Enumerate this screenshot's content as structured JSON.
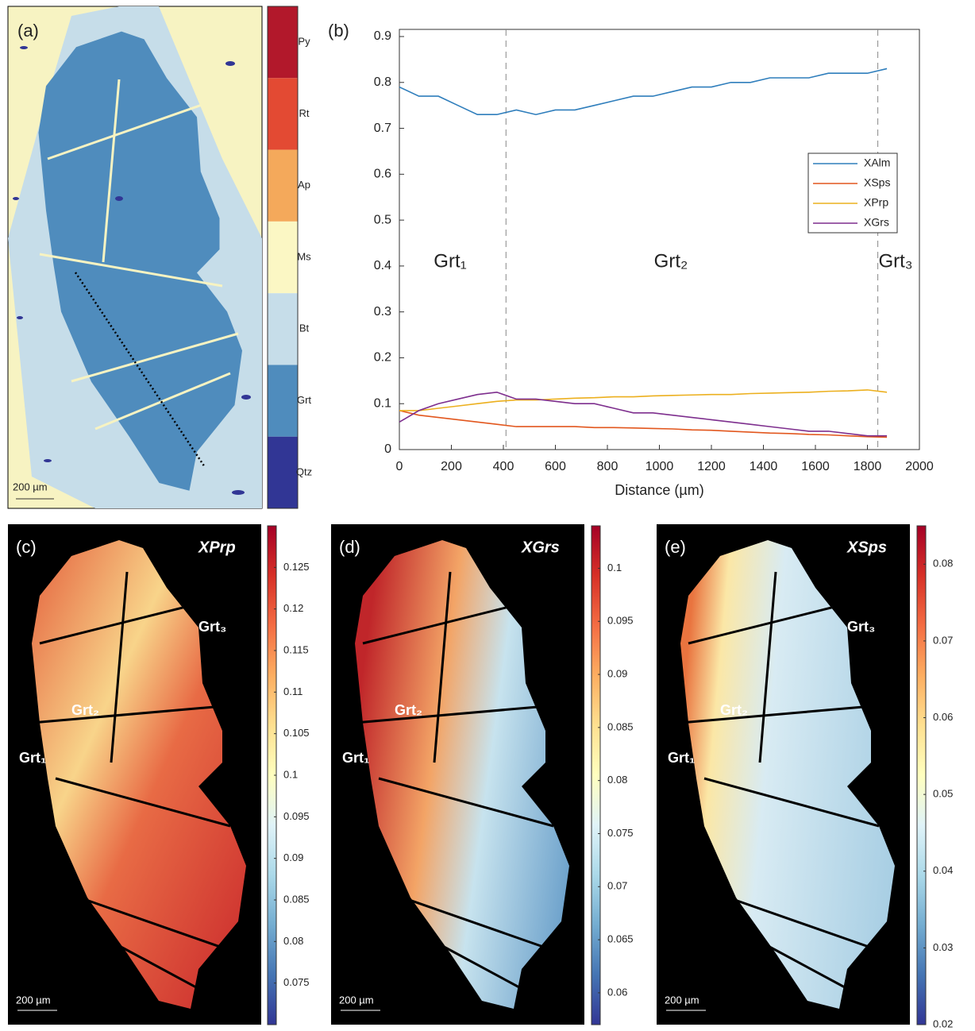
{
  "phase_map": {
    "label": "(a)",
    "scale_bar": "200 µm",
    "legend": [
      {
        "name": "Py",
        "color": "#b2182b"
      },
      {
        "name": "Rt",
        "color": "#e34a33"
      },
      {
        "name": "Ap",
        "color": "#f4a95b"
      },
      {
        "name": "Ms",
        "color": "#fbf7c4"
      },
      {
        "name": "Bt",
        "color": "#c6dde9"
      },
      {
        "name": "Grt",
        "color": "#4f8cbd"
      },
      {
        "name": "Qtz",
        "color": "#313695"
      }
    ]
  },
  "chart_data": {
    "type": "line",
    "label": "(b)",
    "xlabel": "Distance (µm)",
    "xlim": [
      0,
      2000
    ],
    "xticks": [
      0,
      200,
      400,
      600,
      800,
      1000,
      1200,
      1400,
      1600,
      1800,
      2000
    ],
    "ylim": [
      0,
      0.9
    ],
    "yticks": [
      0,
      0.1,
      0.2,
      0.3,
      0.4,
      0.5,
      0.6,
      0.7,
      0.8,
      0.9
    ],
    "boundaries": [
      410,
      1840
    ],
    "annotations": [
      "Grt₁",
      "Grt₂",
      "Grt₃"
    ],
    "x": [
      0,
      75,
      150,
      225,
      300,
      375,
      450,
      525,
      600,
      675,
      750,
      825,
      900,
      975,
      1050,
      1125,
      1200,
      1275,
      1350,
      1425,
      1500,
      1575,
      1650,
      1725,
      1800,
      1875
    ],
    "series": [
      {
        "name": "XAlm",
        "color": "#2f7ebc",
        "values": [
          0.79,
          0.77,
          0.77,
          0.75,
          0.73,
          0.73,
          0.74,
          0.73,
          0.74,
          0.74,
          0.75,
          0.76,
          0.77,
          0.77,
          0.78,
          0.79,
          0.79,
          0.8,
          0.8,
          0.81,
          0.81,
          0.81,
          0.82,
          0.82,
          0.82,
          0.83
        ]
      },
      {
        "name": "XSps",
        "color": "#e2571e",
        "values": [
          0.085,
          0.075,
          0.07,
          0.065,
          0.06,
          0.055,
          0.05,
          0.05,
          0.05,
          0.05,
          0.048,
          0.048,
          0.047,
          0.046,
          0.045,
          0.043,
          0.042,
          0.04,
          0.038,
          0.036,
          0.035,
          0.033,
          0.032,
          0.03,
          0.028,
          0.027
        ]
      },
      {
        "name": "XPrp",
        "color": "#ecb01f",
        "values": [
          0.085,
          0.085,
          0.09,
          0.095,
          0.1,
          0.105,
          0.108,
          0.108,
          0.11,
          0.112,
          0.113,
          0.115,
          0.115,
          0.117,
          0.118,
          0.119,
          0.12,
          0.12,
          0.122,
          0.123,
          0.124,
          0.125,
          0.127,
          0.128,
          0.13,
          0.125
        ]
      },
      {
        "name": "XGrs",
        "color": "#7e2f8e",
        "values": [
          0.06,
          0.085,
          0.1,
          0.11,
          0.12,
          0.125,
          0.11,
          0.11,
          0.105,
          0.1,
          0.1,
          0.09,
          0.08,
          0.08,
          0.075,
          0.07,
          0.065,
          0.06,
          0.055,
          0.05,
          0.045,
          0.04,
          0.04,
          0.035,
          0.03,
          0.03
        ]
      }
    ]
  },
  "maps": [
    {
      "label": "(c)",
      "title": "XPrp",
      "clim": [
        0.07,
        0.13
      ],
      "cticks": [
        0.075,
        0.08,
        0.085,
        0.09,
        0.095,
        0.1,
        0.105,
        0.11,
        0.115,
        0.12,
        0.125
      ],
      "grains": [
        "Grt₁",
        "Grt₂",
        "Grt₃"
      ],
      "scale_bar": "200 µm"
    },
    {
      "label": "(d)",
      "title": "XGrs",
      "clim": [
        0.057,
        0.104
      ],
      "cticks": [
        0.06,
        0.065,
        0.07,
        0.075,
        0.08,
        0.085,
        0.09,
        0.095,
        0.1
      ],
      "grains": [
        "Grt₁",
        "Grt₂"
      ],
      "scale_bar": "200 µm"
    },
    {
      "label": "(e)",
      "title": "XSps",
      "clim": [
        0.02,
        0.085
      ],
      "cticks": [
        0.02,
        0.03,
        0.04,
        0.05,
        0.06,
        0.07,
        0.08
      ],
      "grains": [
        "Grt₁",
        "Grt₂",
        "Grt₃"
      ],
      "scale_bar": "200 µm"
    }
  ]
}
